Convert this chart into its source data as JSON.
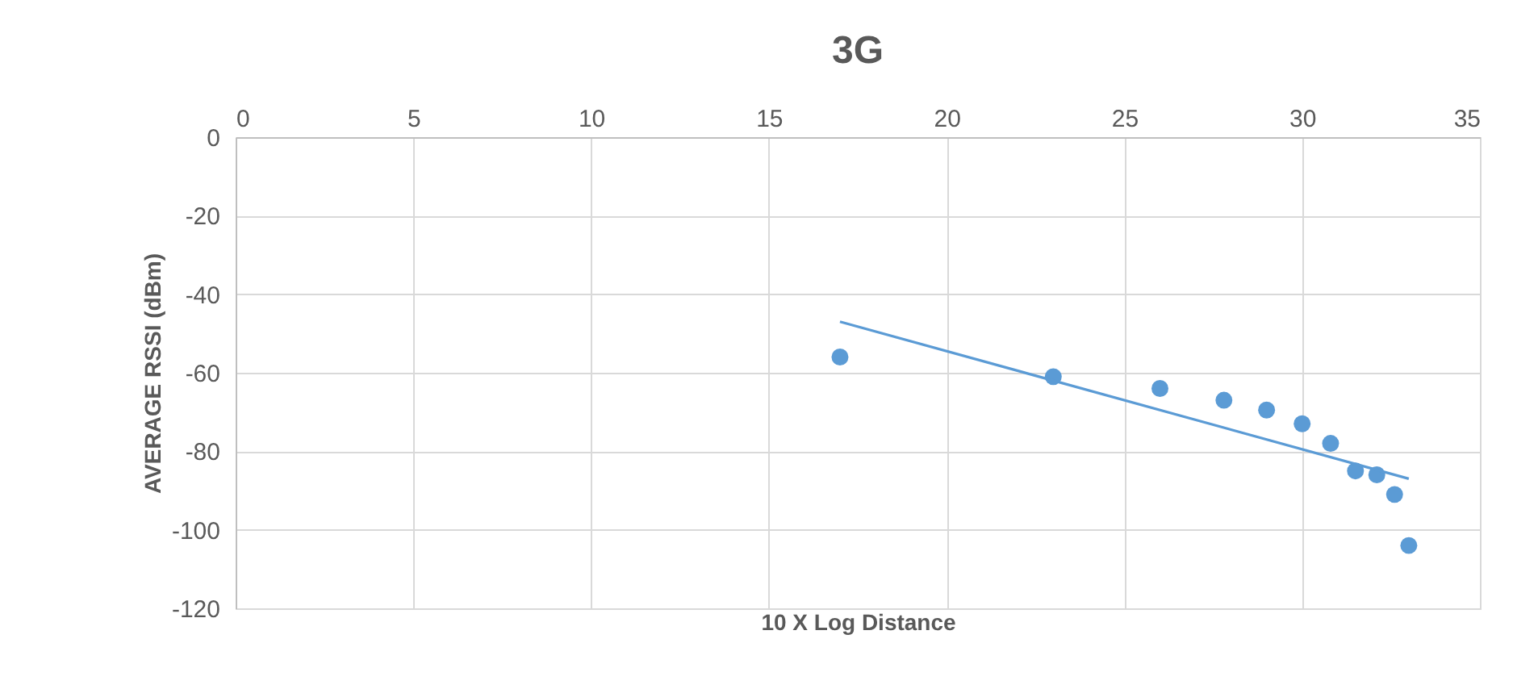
{
  "chart_data": {
    "type": "scatter",
    "title": "3G",
    "xlabel": "10 X Log Distance",
    "ylabel": "AVERAGE RSSI (dBm)",
    "series": [
      {
        "marker": "circle",
        "color": "#5b9bd5",
        "x": [
          17,
          23,
          26,
          27.8,
          29,
          30,
          30.8,
          31.5,
          32.1,
          32.6,
          33
        ],
        "values": [
          -56,
          -61,
          -64,
          -67,
          -69.5,
          -73,
          -78,
          -85,
          -86,
          -91,
          -104
        ]
      },
      {
        "type": "line",
        "marker": "none",
        "color": "#5b9bd5",
        "x": [
          17,
          33
        ],
        "values": [
          -47,
          -87
        ]
      }
    ],
    "xlim": [
      0,
      35
    ],
    "xticks": [
      0,
      5,
      10,
      15,
      20,
      25,
      30,
      35
    ],
    "ylim": [
      -120,
      0
    ],
    "yticks": [
      -120,
      -100,
      -80,
      -60,
      -40,
      -20,
      0
    ],
    "grid": true
  }
}
